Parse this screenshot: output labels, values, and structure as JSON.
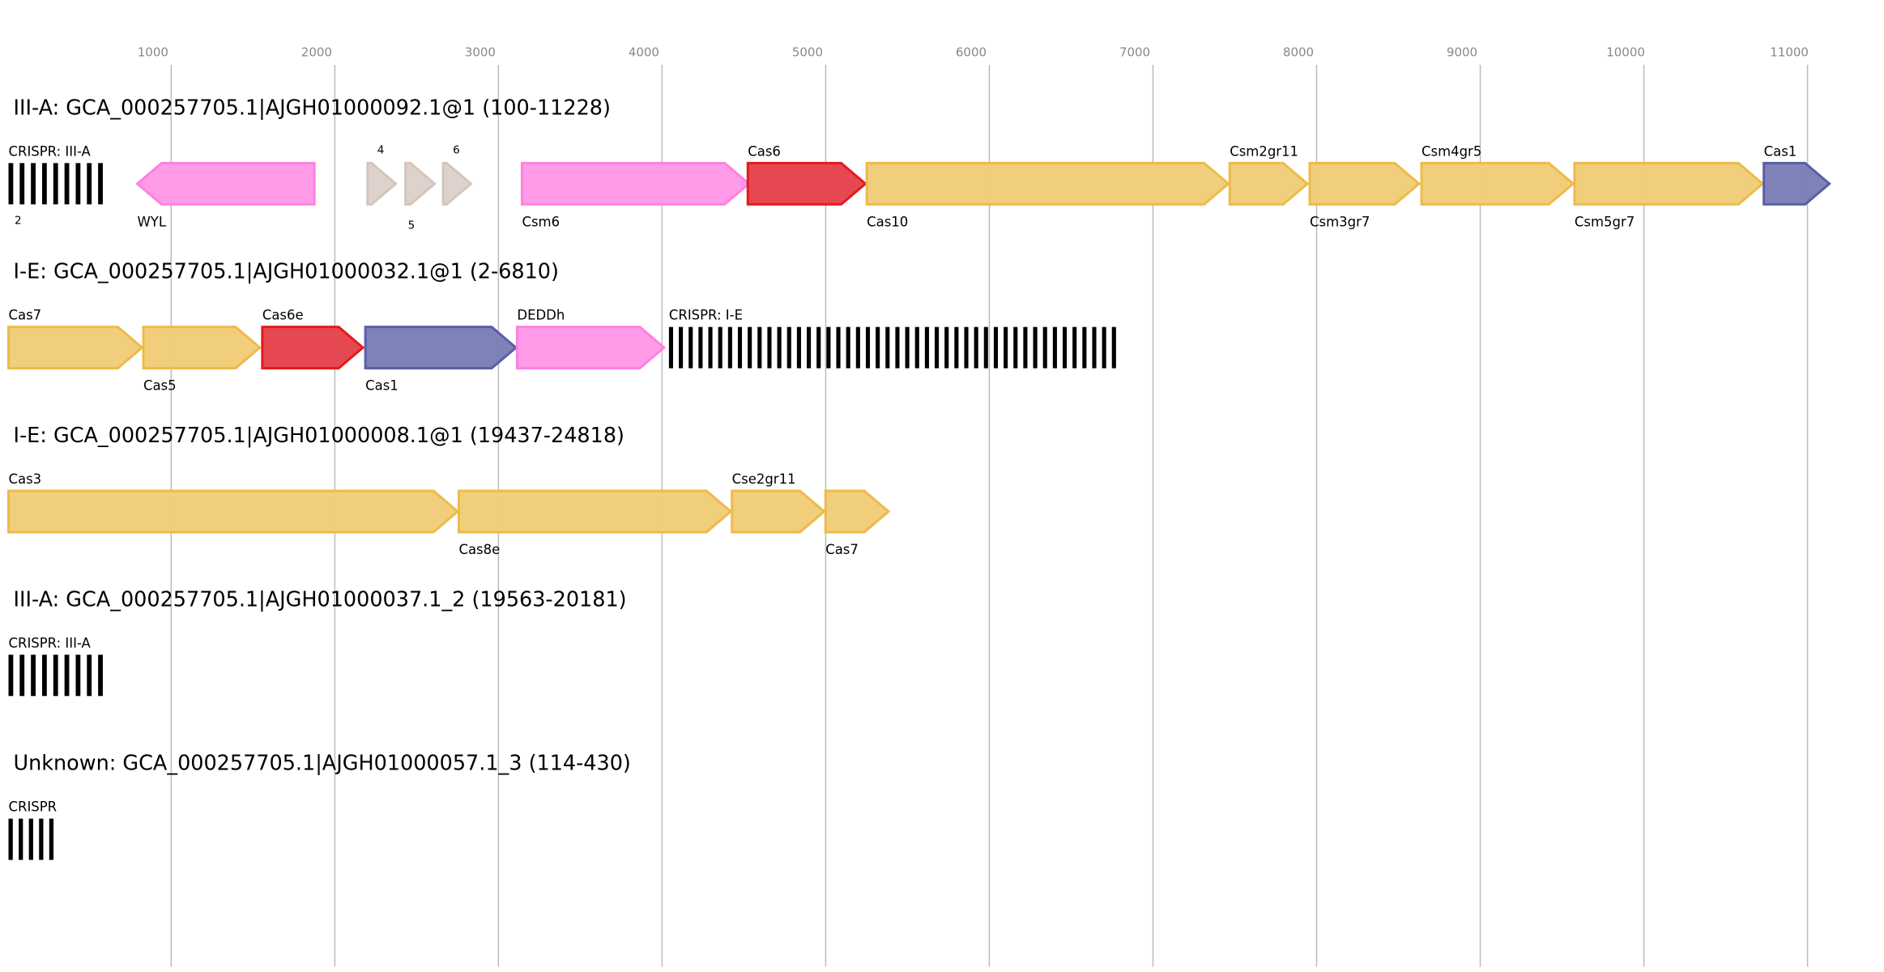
{
  "axis": {
    "ticks": [
      1000,
      2000,
      3000,
      4000,
      5000,
      6000,
      7000,
      8000,
      9000,
      10000,
      11000
    ],
    "tick_labels": [
      "1000",
      "2000",
      "3000",
      "4000",
      "5000",
      "6000",
      "7000",
      "8000",
      "9000",
      "10000",
      "11000"
    ]
  },
  "colors": {
    "yellow": {
      "fill": "#f1cd78",
      "stroke": "#edbb4a"
    },
    "pink": {
      "fill": "#ff99e8",
      "stroke": "#ff80e0"
    },
    "red": {
      "fill": "#e5444f",
      "stroke": "#e31a1c"
    },
    "blue": {
      "fill": "#7b7fb8",
      "stroke": "#5a5fa5"
    },
    "beige": {
      "fill": "#dcd2cb",
      "stroke": "#d2c6bc"
    },
    "crispr": "#000000"
  },
  "tracks": [
    {
      "title": "III-A: GCA_000257705.1|AJGH01000092.1@1 (100-11228)",
      "features": [
        {
          "label": "CRISPR: III-A",
          "type": "crispr",
          "start": 6,
          "end": 622,
          "repeats": 9,
          "label_pos": "above"
        },
        {
          "label": "2",
          "type": "marker",
          "start": 80,
          "end": 80,
          "label_pos": "above-small"
        },
        {
          "label": "WYL",
          "type": "gene",
          "start": 793,
          "end": 1875,
          "strand": "-",
          "color": "pink",
          "label_pos": "below"
        },
        {
          "label": "4",
          "type": "gene",
          "start": 2200,
          "end": 2373,
          "strand": "+",
          "color": "beige",
          "label_pos": "above-small"
        },
        {
          "label": "5",
          "type": "gene",
          "start": 2432,
          "end": 2610,
          "strand": "+",
          "color": "beige",
          "label_pos": "below-small"
        },
        {
          "label": "6",
          "type": "gene",
          "start": 2662,
          "end": 2832,
          "strand": "+",
          "color": "beige",
          "label_pos": "above-small"
        },
        {
          "label": "Csm6",
          "type": "gene",
          "start": 3144,
          "end": 4531,
          "strand": "+",
          "color": "pink",
          "label_pos": "below"
        },
        {
          "label": "Cas6",
          "type": "gene",
          "start": 4524,
          "end": 5243,
          "strand": "+",
          "color": "red",
          "label_pos": "above"
        },
        {
          "label": "Cas10",
          "type": "gene",
          "start": 5251,
          "end": 7461,
          "strand": "+",
          "color": "yellow",
          "label_pos": "below"
        },
        {
          "label": "Csm2gr11",
          "type": "gene",
          "start": 7469,
          "end": 7944,
          "strand": "+",
          "color": "yellow",
          "label_pos": "above"
        },
        {
          "label": "Csm3gr7",
          "type": "gene",
          "start": 7958,
          "end": 8626,
          "strand": "+",
          "color": "yellow",
          "label_pos": "below"
        },
        {
          "label": "Csm4gr5",
          "type": "gene",
          "start": 8641,
          "end": 9568,
          "strand": "+",
          "color": "yellow",
          "label_pos": "above"
        },
        {
          "label": "Csm5gr7",
          "type": "gene",
          "start": 9576,
          "end": 10726,
          "strand": "+",
          "color": "yellow",
          "label_pos": "below"
        },
        {
          "label": "Cas1",
          "type": "gene",
          "start": 10733,
          "end": 11134,
          "strand": "+",
          "color": "blue",
          "label_pos": "above"
        }
      ]
    },
    {
      "title": "I-E: GCA_000257705.1|AJGH01000032.1@1 (2-6810)",
      "features": [
        {
          "label": "Cas7",
          "type": "gene",
          "start": 6,
          "end": 822,
          "strand": "+",
          "color": "yellow",
          "label_pos": "above"
        },
        {
          "label": "Cas5",
          "type": "gene",
          "start": 830,
          "end": 1542,
          "strand": "+",
          "color": "yellow",
          "label_pos": "below"
        },
        {
          "label": "Cas6e",
          "type": "gene",
          "start": 1557,
          "end": 2172,
          "strand": "+",
          "color": "red",
          "label_pos": "above"
        },
        {
          "label": "Cas1",
          "type": "gene",
          "start": 2187,
          "end": 3107,
          "strand": "+",
          "color": "blue",
          "label_pos": "below"
        },
        {
          "label": "DEDDh",
          "type": "gene",
          "start": 3114,
          "end": 4012,
          "strand": "+",
          "color": "pink",
          "label_pos": "above"
        },
        {
          "label": "CRISPR: I-E",
          "type": "crispr",
          "start": 4042,
          "end": 6809,
          "repeats": 46,
          "label_pos": "above"
        }
      ]
    },
    {
      "title": "I-E: GCA_000257705.1|AJGH01000008.1@1 (19437-24818)",
      "features": [
        {
          "label": "Cas3",
          "type": "gene",
          "start": 6,
          "end": 2751,
          "strand": "+",
          "color": "yellow",
          "label_pos": "above"
        },
        {
          "label": "Cas8e",
          "type": "gene",
          "start": 2758,
          "end": 4420,
          "strand": "+",
          "color": "yellow",
          "label_pos": "below"
        },
        {
          "label": "Cse2gr11",
          "type": "gene",
          "start": 4427,
          "end": 4991,
          "strand": "+",
          "color": "yellow",
          "label_pos": "above"
        },
        {
          "label": "Cas7",
          "type": "gene",
          "start": 4999,
          "end": 5384,
          "strand": "+",
          "color": "yellow",
          "label_pos": "below"
        }
      ]
    },
    {
      "title": "III-A: GCA_000257705.1|AJGH01000037.1_2 (19563-20181)",
      "features": [
        {
          "label": "CRISPR: III-A",
          "type": "crispr",
          "start": 6,
          "end": 622,
          "repeats": 9,
          "label_pos": "above"
        }
      ]
    },
    {
      "title": "Unknown: GCA_000257705.1|AJGH01000057.1_3 (114-430)",
      "features": [
        {
          "label": "CRISPR",
          "type": "crispr",
          "start": 6,
          "end": 317,
          "repeats": 5,
          "label_pos": "above"
        }
      ]
    }
  ]
}
